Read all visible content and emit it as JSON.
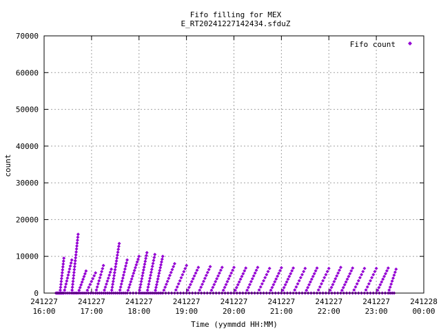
{
  "chart_data": {
    "type": "scatter",
    "title_lines": [
      "Fifo filling for MEX",
      "E_RT20241227142434.sfduZ"
    ],
    "xlabel": "Time (yymmdd HH:MM)",
    "ylabel": "count",
    "xlim": [
      "241227 16:00",
      "241228 00:00"
    ],
    "ylim": [
      0,
      70000
    ],
    "grid": true,
    "grid_style": "dotted",
    "legend": "top-right",
    "marker_color": "#9400d3",
    "x_ticks": [
      {
        "date": "241227",
        "time": "16:00"
      },
      {
        "date": "241227",
        "time": "17:00"
      },
      {
        "date": "241227",
        "time": "18:00"
      },
      {
        "date": "241227",
        "time": "19:00"
      },
      {
        "date": "241227",
        "time": "20:00"
      },
      {
        "date": "241227",
        "time": "21:00"
      },
      {
        "date": "241227",
        "time": "22:00"
      },
      {
        "date": "241227",
        "time": "23:00"
      },
      {
        "date": "241228",
        "time": "00:00"
      }
    ],
    "y_ticks": [
      "0",
      "10000",
      "20000",
      "30000",
      "40000",
      "50000",
      "60000",
      "70000"
    ],
    "series": [
      {
        "name": "Fifo count",
        "description": "sawtooth ramps from ~0 to the listed peak count over time",
        "ramp_peaks": [
          {
            "time": "241227 16:20",
            "count": 0
          },
          {
            "time": "241227 16:25",
            "count": 9500
          },
          {
            "time": "241227 16:35",
            "count": 9000
          },
          {
            "time": "241227 16:43",
            "count": 16000
          },
          {
            "time": "241227 16:53",
            "count": 6000
          },
          {
            "time": "241227 17:05",
            "count": 5500
          },
          {
            "time": "241227 17:15",
            "count": 7500
          },
          {
            "time": "241227 17:25",
            "count": 6500
          },
          {
            "time": "241227 17:35",
            "count": 13500
          },
          {
            "time": "241227 17:45",
            "count": 9000
          },
          {
            "time": "241227 18:00",
            "count": 10000
          },
          {
            "time": "241227 18:10",
            "count": 11000
          },
          {
            "time": "241227 18:20",
            "count": 10500
          },
          {
            "time": "241227 18:30",
            "count": 10000
          },
          {
            "time": "241227 18:45",
            "count": 8000
          },
          {
            "time": "241227 19:00",
            "count": 7500
          },
          {
            "time": "241227 19:15",
            "count": 7000
          },
          {
            "time": "241227 19:30",
            "count": 7200
          },
          {
            "time": "241227 19:45",
            "count": 7000
          },
          {
            "time": "241227 20:00",
            "count": 7000
          },
          {
            "time": "241227 20:15",
            "count": 6800
          },
          {
            "time": "241227 20:30",
            "count": 7000
          },
          {
            "time": "241227 20:45",
            "count": 6700
          },
          {
            "time": "241227 21:00",
            "count": 6900
          },
          {
            "time": "241227 21:15",
            "count": 6800
          },
          {
            "time": "241227 21:30",
            "count": 6700
          },
          {
            "time": "241227 21:45",
            "count": 6800
          },
          {
            "time": "241227 22:00",
            "count": 6700
          },
          {
            "time": "241227 22:15",
            "count": 7000
          },
          {
            "time": "241227 22:30",
            "count": 6800
          },
          {
            "time": "241227 22:45",
            "count": 6700
          },
          {
            "time": "241227 23:00",
            "count": 6700
          },
          {
            "time": "241227 23:15",
            "count": 6800
          },
          {
            "time": "241227 23:25",
            "count": 6500
          }
        ]
      }
    ]
  }
}
